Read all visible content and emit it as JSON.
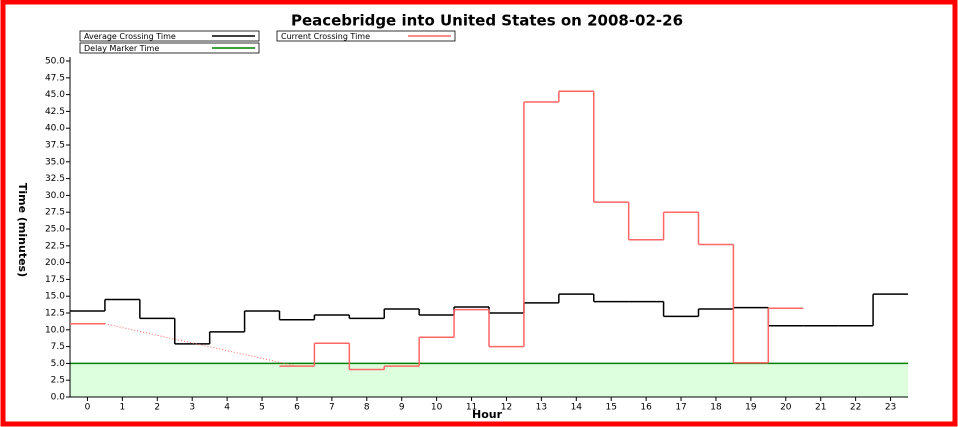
{
  "chart_data": {
    "type": "step",
    "title": "Peacebridge into United States on 2008-02-26",
    "x_label": "Hour",
    "y_label": "Time (minutes)",
    "x": [
      0,
      1,
      2,
      3,
      4,
      5,
      6,
      7,
      8,
      9,
      10,
      11,
      12,
      13,
      14,
      15,
      16,
      17,
      18,
      19,
      20,
      21,
      22,
      23
    ],
    "series": [
      {
        "name": "Average Crossing Time",
        "color": "#000000",
        "values": [
          12.8,
          14.5,
          11.7,
          7.9,
          9.7,
          12.8,
          11.5,
          12.2,
          11.7,
          13.1,
          12.2,
          13.4,
          12.5,
          14.0,
          15.3,
          14.2,
          14.2,
          12.0,
          13.1,
          13.3,
          10.6,
          10.6,
          10.6,
          15.3
        ]
      },
      {
        "name": "Current Crossing Time",
        "color": "#ff6666",
        "values": [
          10.9,
          null,
          null,
          null,
          null,
          null,
          4.6,
          8.0,
          4.1,
          4.6,
          8.9,
          13.0,
          7.5,
          43.9,
          45.5,
          29.0,
          23.4,
          27.5,
          22.7,
          5.1,
          13.2,
          null,
          null,
          null
        ]
      }
    ],
    "threshold": {
      "name": "Delay Marker Time",
      "color": "#008000",
      "fill": "#ddffdd",
      "value": 5.0
    },
    "xlim": [
      -0.5,
      23.5
    ],
    "xticks": [
      0,
      1,
      2,
      3,
      4,
      5,
      6,
      7,
      8,
      9,
      10,
      11,
      12,
      13,
      14,
      15,
      16,
      17,
      18,
      19,
      20,
      21,
      22,
      23
    ],
    "ylim": [
      0,
      50
    ],
    "yticks": [
      {
        "value": 0,
        "label": "0.0"
      },
      2.5,
      {
        "value": 5,
        "label": "5.0"
      },
      7.5,
      {
        "value": 10,
        "label": "10.0"
      },
      12.5,
      {
        "value": 15,
        "label": "15.0"
      },
      17.5,
      {
        "value": 20,
        "label": "20.0"
      },
      22.5,
      {
        "value": 25,
        "label": "25.0"
      },
      27.5,
      {
        "value": 30,
        "label": "30.0"
      },
      32.5,
      {
        "value": 35,
        "label": "35.0"
      },
      37.5,
      {
        "value": 40,
        "label": "40.0"
      },
      42.5,
      {
        "value": 45,
        "label": "45.0"
      },
      47.5,
      {
        "value": 50,
        "label": "50.0"
      }
    ]
  }
}
